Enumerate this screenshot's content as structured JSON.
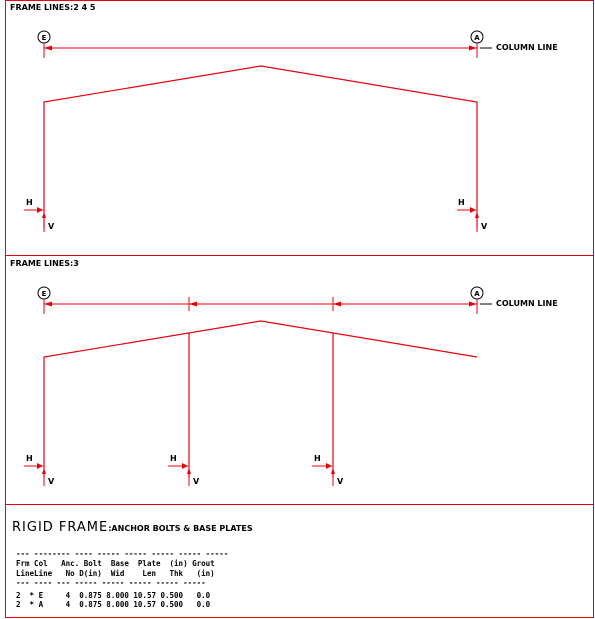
{
  "colors": {
    "frame_line": "#e8000f",
    "text": "#000000",
    "background": "#ffffff"
  },
  "section1": {
    "header": "FRAME LINES:2  4  5",
    "grid_left": "E",
    "grid_right": "A",
    "column_line_label": "COLUMN LINE",
    "reaction_h": "H",
    "reaction_v": "V"
  },
  "section2": {
    "header": "FRAME LINES:3",
    "grid_left": "E",
    "grid_right": "A",
    "column_line_label": "COLUMN LINE",
    "reaction_h": "H",
    "reaction_v": "V"
  },
  "table": {
    "title_big": "RIGID FRAME",
    "title_small": ":ANCHOR BOLTS & BASE PLATES",
    "header_line1": "Frm Col   Anc. Bolt  Base  Plate  (in) Grout",
    "header_line2": "LineLine   No D(in)  Wid    Len   Thk   (in)",
    "rows": [
      "2  * E     4  0.875 8.000 10.57 0.500   0.0",
      "2  * A     4  0.875 8.000 10.57 0.500   0.0"
    ]
  }
}
